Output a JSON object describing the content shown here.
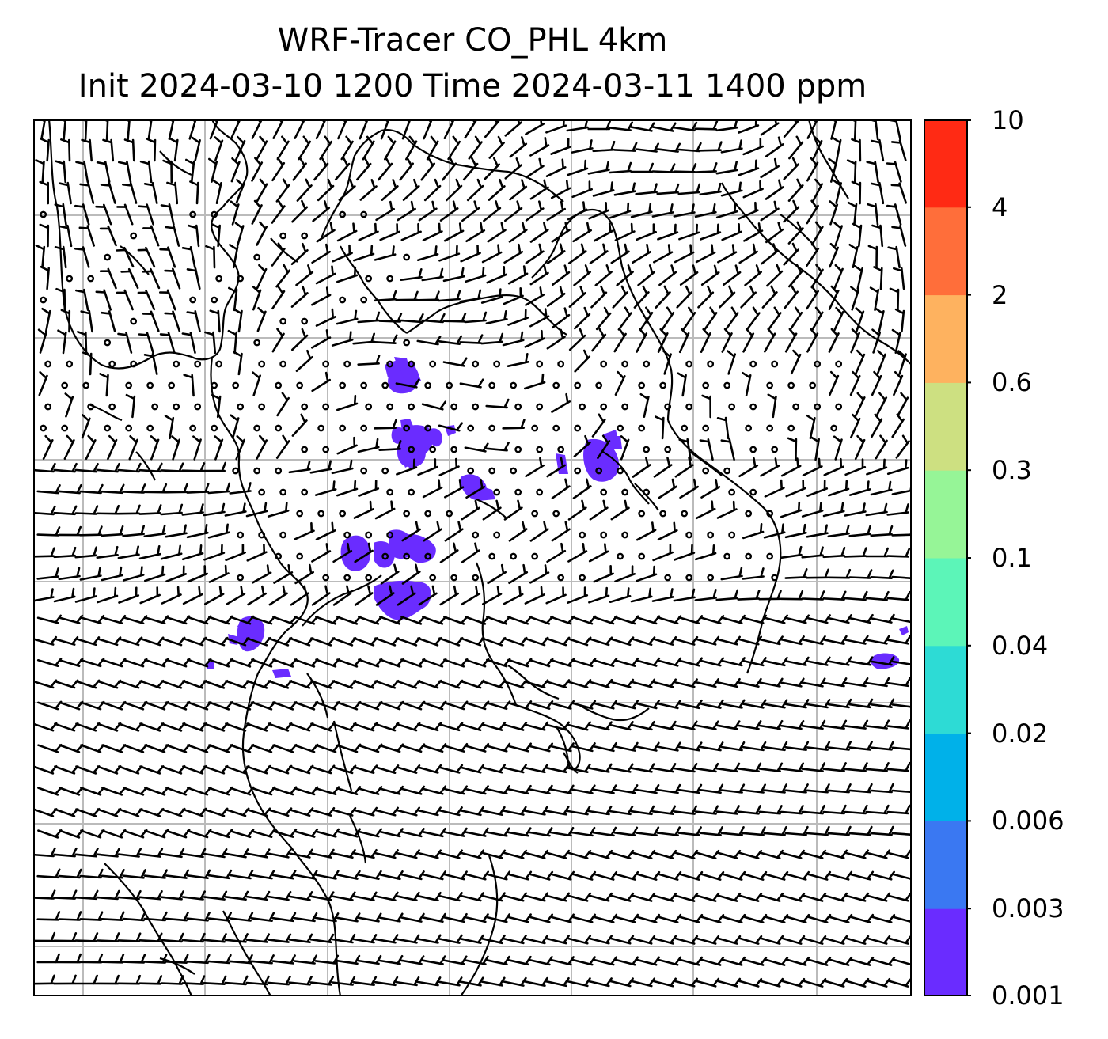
{
  "title": {
    "line1": "WRF-Tracer CO_PHL 4km",
    "line2": "Init 2024-03-10 1200 Time 2024-03-11 1400 ppm"
  },
  "colorbar": {
    "levels": [
      "0.001",
      "0.003",
      "0.006",
      "0.02",
      "0.04",
      "0.1",
      "0.3",
      "0.6",
      "2",
      "4",
      "10"
    ],
    "colors": [
      "#6a2cff",
      "#3a78f2",
      "#00b1e9",
      "#2ddbd5",
      "#5cf5b8",
      "#96f597",
      "#cde081",
      "#feb25f",
      "#ff6e3a",
      "#ff2a14"
    ]
  },
  "map": {
    "gridlines": true,
    "gridline_color": "#bbbbbb",
    "barb_color": "#000000",
    "tracer_color": "#6a2cff"
  }
}
